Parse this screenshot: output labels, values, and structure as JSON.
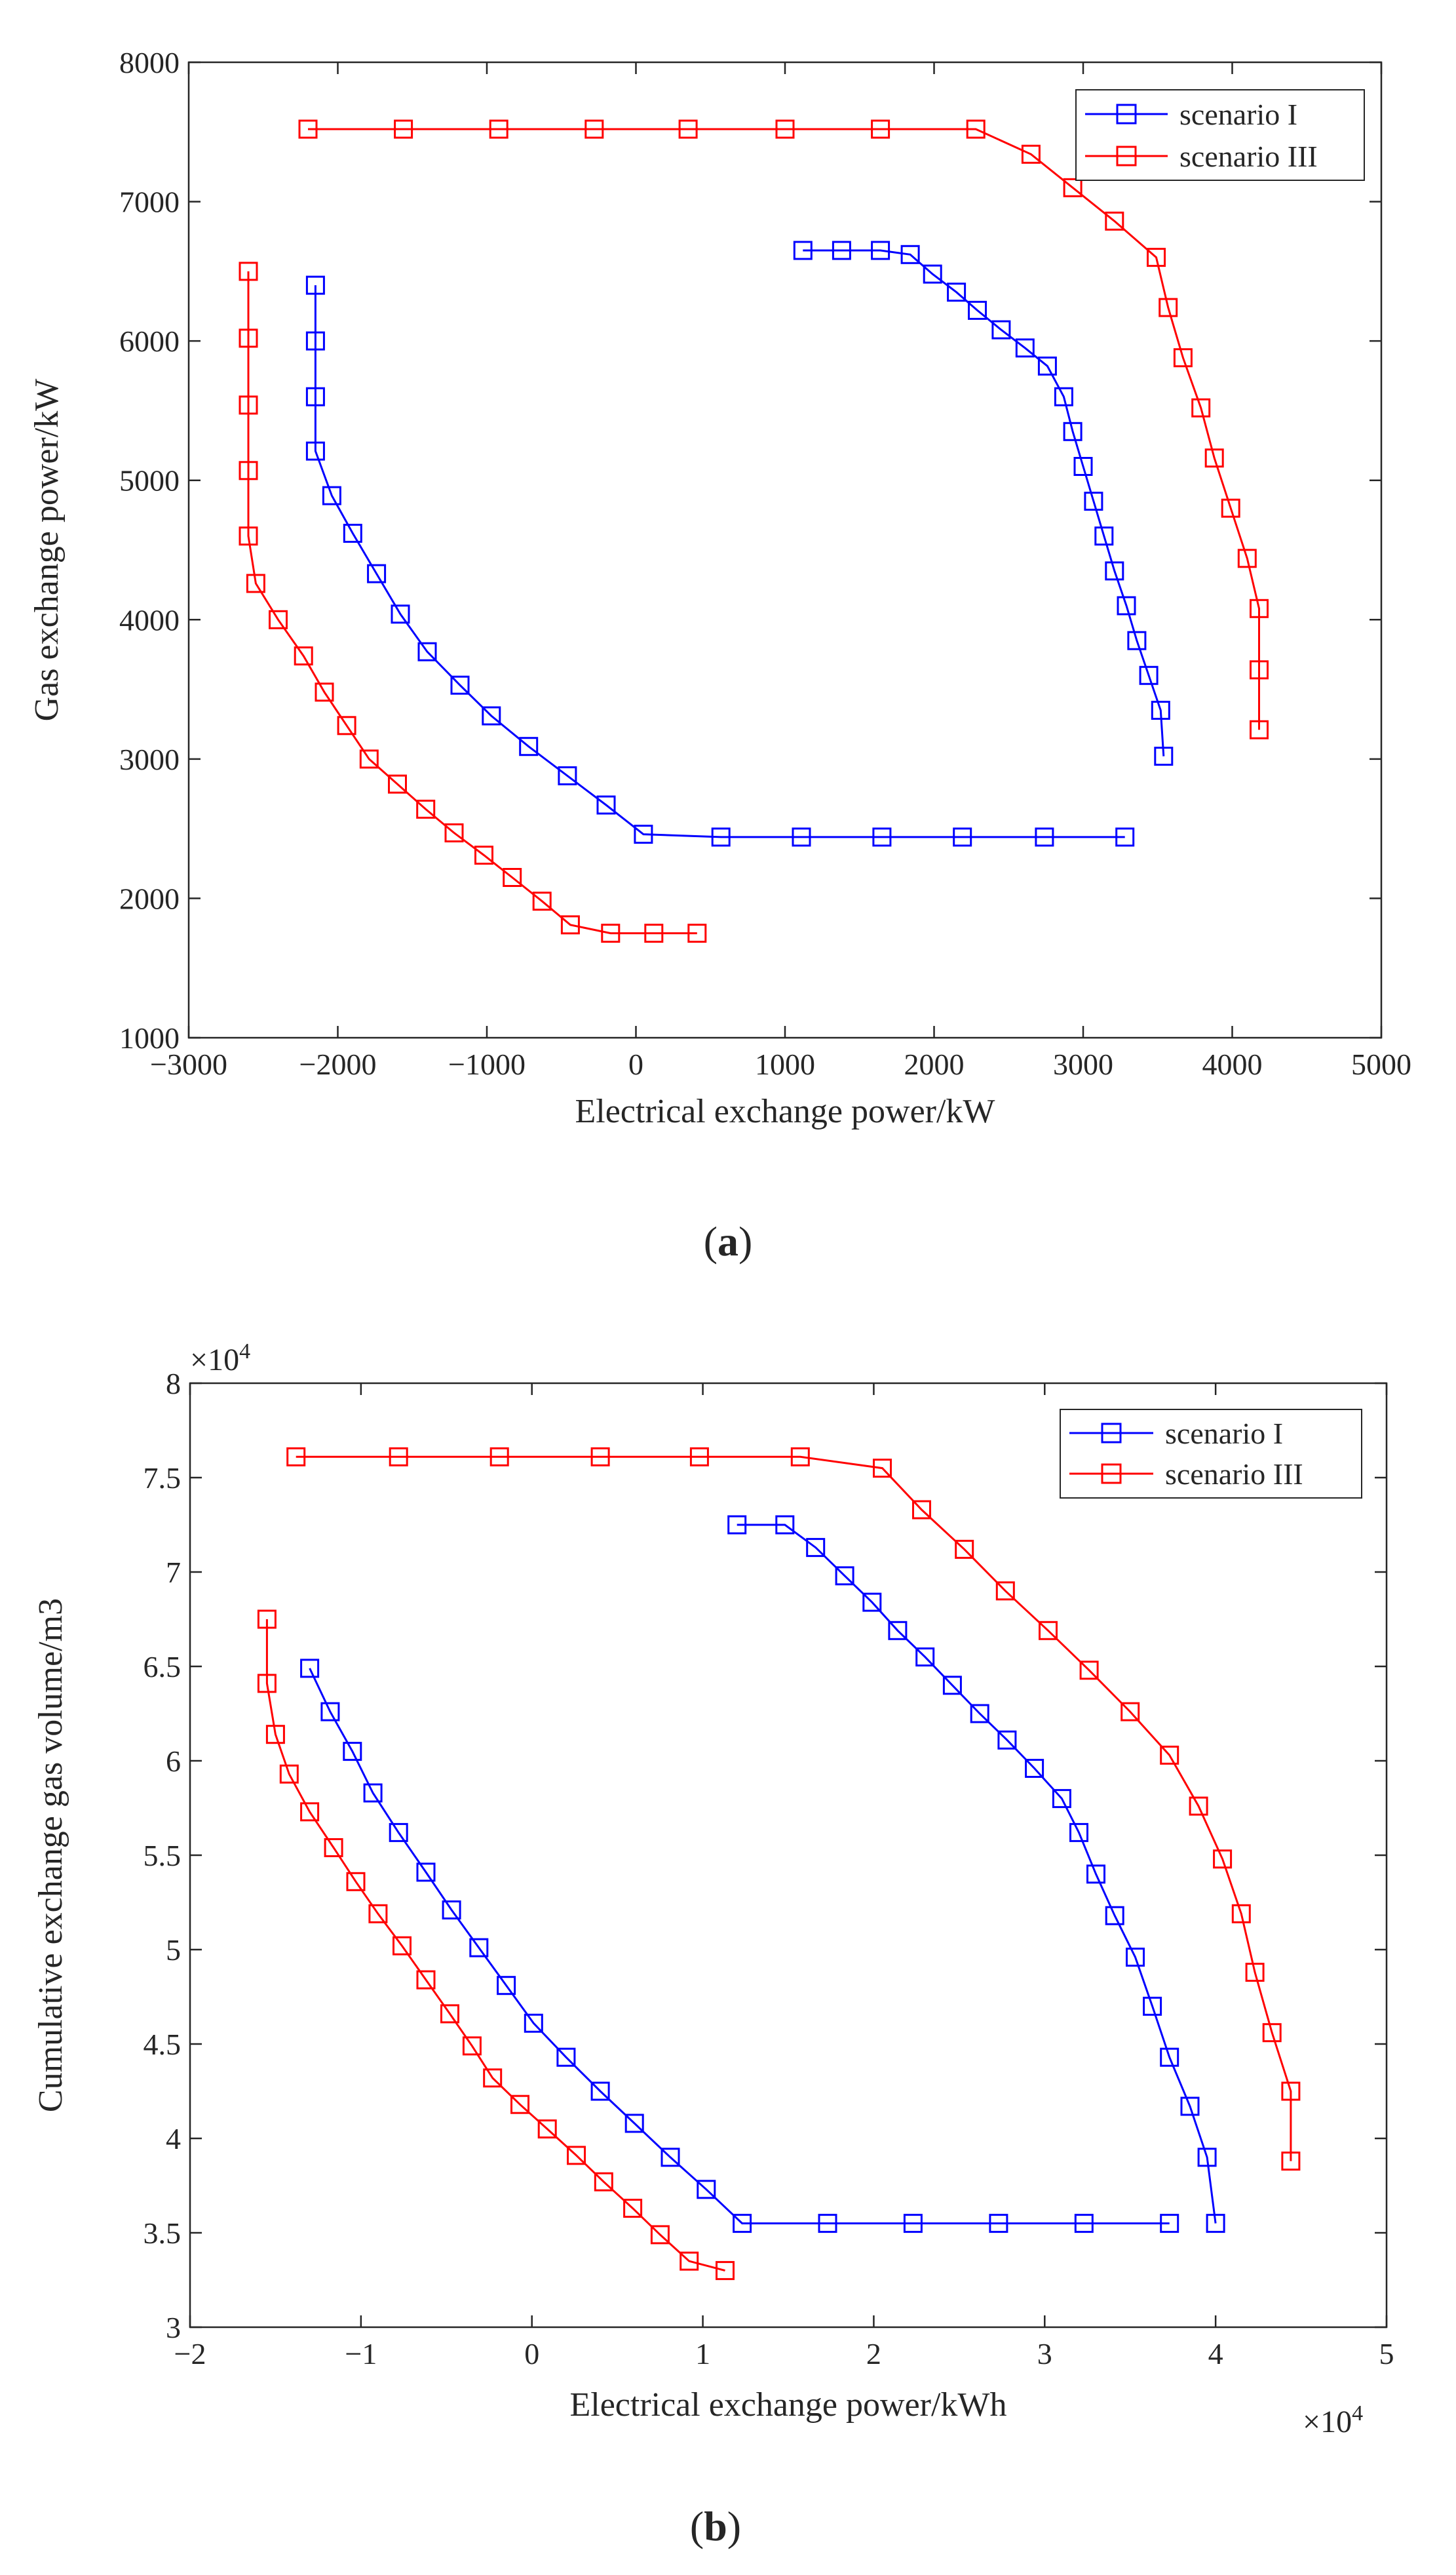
{
  "colors": {
    "series_1": "#0000ff",
    "series_2": "#ff0000",
    "axis": "#262626"
  },
  "panel_labels": {
    "a": {
      "open": "(",
      "letter": "a",
      "close": ")"
    },
    "b": {
      "open": "(",
      "letter": "b",
      "close": ")"
    }
  },
  "chart_data": [
    {
      "type": "line",
      "id": "a",
      "xlabel": "Electrical exchange power/kW",
      "ylabel": "Gas exchange power/kW",
      "xlim": [
        -3000,
        5000
      ],
      "ylim": [
        1000,
        8000
      ],
      "xticks": [
        -3000,
        -2000,
        -1000,
        0,
        1000,
        2000,
        3000,
        4000,
        5000
      ],
      "yticks": [
        1000,
        2000,
        3000,
        4000,
        5000,
        6000,
        7000,
        8000
      ],
      "xtick_labels": [
        "−3000",
        "−2000",
        "−1000",
        "0",
        "1000",
        "2000",
        "3000",
        "4000",
        "5000"
      ],
      "ytick_labels": [
        "1000",
        "2000",
        "3000",
        "4000",
        "5000",
        "6000",
        "7000",
        "8000"
      ],
      "x_multiplier": null,
      "y_multiplier": null,
      "grid": false,
      "legend_position": "top-right",
      "marker": "square",
      "series": [
        {
          "name": "scenario I",
          "color": "#0000ff",
          "points": [
            [
              -2150,
              6400
            ],
            [
              -2150,
              6000
            ],
            [
              -2150,
              5600
            ],
            [
              -2150,
              5210
            ],
            [
              -2040,
              4890
            ],
            [
              -1900,
              4620
            ],
            [
              -1740,
              4330
            ],
            [
              -1580,
              4040
            ],
            [
              -1400,
              3770
            ],
            [
              -1180,
              3530
            ],
            [
              -970,
              3310
            ],
            [
              -720,
              3090
            ],
            [
              -460,
              2880
            ],
            [
              -200,
              2670
            ],
            [
              50,
              2460
            ],
            [
              570,
              2440
            ],
            [
              1110,
              2440
            ],
            [
              1650,
              2440
            ],
            [
              2190,
              2440
            ],
            [
              2740,
              2440
            ],
            [
              3280,
              2440
            ],
            null,
            [
              1120,
              6650
            ],
            [
              1380,
              6650
            ],
            [
              1640,
              6650
            ],
            [
              1840,
              6620
            ],
            [
              1990,
              6480
            ],
            [
              2150,
              6350
            ],
            [
              2290,
              6220
            ],
            [
              2450,
              6080
            ],
            [
              2610,
              5950
            ],
            [
              2760,
              5820
            ],
            [
              2870,
              5600
            ],
            [
              2930,
              5350
            ],
            [
              3000,
              5100
            ],
            [
              3070,
              4850
            ],
            [
              3140,
              4600
            ],
            [
              3210,
              4350
            ],
            [
              3290,
              4100
            ],
            [
              3360,
              3850
            ],
            [
              3440,
              3600
            ],
            [
              3520,
              3350
            ],
            [
              3540,
              3020
            ]
          ]
        },
        {
          "name": "scenario III",
          "color": "#ff0000",
          "points": [
            [
              -2200,
              7520
            ],
            [
              -1560,
              7520
            ],
            [
              -920,
              7520
            ],
            [
              -280,
              7520
            ],
            [
              350,
              7520
            ],
            [
              1000,
              7520
            ],
            [
              1640,
              7520
            ],
            [
              2280,
              7520
            ],
            [
              2650,
              7340
            ],
            [
              2930,
              7100
            ],
            [
              3210,
              6860
            ],
            [
              3490,
              6600
            ],
            [
              3570,
              6240
            ],
            [
              3670,
              5880
            ],
            [
              3790,
              5520
            ],
            [
              3880,
              5160
            ],
            [
              3990,
              4800
            ],
            [
              4100,
              4440
            ],
            [
              4180,
              4080
            ],
            [
              4180,
              3640
            ],
            [
              4180,
              3210
            ],
            null,
            [
              -2600,
              6500
            ],
            [
              -2600,
              6020
            ],
            [
              -2600,
              5540
            ],
            [
              -2600,
              5070
            ],
            [
              -2600,
              4600
            ],
            [
              -2550,
              4260
            ],
            [
              -2400,
              4000
            ],
            [
              -2230,
              3740
            ],
            [
              -2090,
              3480
            ],
            [
              -1940,
              3240
            ],
            [
              -1790,
              3000
            ],
            [
              -1600,
              2820
            ],
            [
              -1410,
              2640
            ],
            [
              -1220,
              2470
            ],
            [
              -1020,
              2310
            ],
            [
              -830,
              2150
            ],
            [
              -630,
              1980
            ],
            [
              -440,
              1810
            ],
            [
              -170,
              1750
            ],
            [
              120,
              1750
            ],
            [
              410,
              1750
            ]
          ]
        }
      ]
    },
    {
      "type": "line",
      "id": "b",
      "xlabel": "Electrical exchange power/kWh",
      "ylabel": "Cumulative exchange gas volume/m3",
      "xlim": [
        -2,
        5
      ],
      "ylim": [
        3,
        8
      ],
      "xticks": [
        -2,
        -1,
        0,
        1,
        2,
        3,
        4,
        5
      ],
      "yticks": [
        3,
        3.5,
        4,
        4.5,
        5,
        5.5,
        6,
        6.5,
        7,
        7.5,
        8
      ],
      "xtick_labels": [
        "−2",
        "−1",
        "0",
        "1",
        "2",
        "3",
        "4",
        "5"
      ],
      "ytick_labels": [
        "3",
        "3.5",
        "4",
        "4.5",
        "5",
        "5.5",
        "6",
        "6.5",
        "7",
        "7.5",
        "8"
      ],
      "x_multiplier": {
        "base": "×10",
        "exp": "4"
      },
      "y_multiplier": {
        "base": "×10",
        "exp": "4"
      },
      "grid": false,
      "legend_position": "top-right",
      "marker": "square",
      "series": [
        {
          "name": "scenario I",
          "color": "#0000ff",
          "points": [
            [
              -1.3,
              6.49
            ],
            [
              -1.18,
              6.26
            ],
            [
              -1.05,
              6.05
            ],
            [
              -0.93,
              5.83
            ],
            [
              -0.78,
              5.62
            ],
            [
              -0.62,
              5.41
            ],
            [
              -0.47,
              5.21
            ],
            [
              -0.31,
              5.01
            ],
            [
              -0.15,
              4.81
            ],
            [
              0.01,
              4.61
            ],
            [
              0.2,
              4.43
            ],
            [
              0.4,
              4.25
            ],
            [
              0.6,
              4.08
            ],
            [
              0.81,
              3.9
            ],
            [
              1.02,
              3.73
            ],
            [
              1.23,
              3.55
            ],
            [
              1.73,
              3.55
            ],
            [
              2.23,
              3.55
            ],
            [
              2.73,
              3.55
            ],
            [
              3.23,
              3.55
            ],
            [
              3.73,
              3.55
            ],
            null,
            [
              1.2,
              7.25
            ],
            [
              1.48,
              7.25
            ],
            [
              1.66,
              7.13
            ],
            [
              1.83,
              6.98
            ],
            [
              1.99,
              6.84
            ],
            [
              2.14,
              6.69
            ],
            [
              2.3,
              6.55
            ],
            [
              2.46,
              6.4
            ],
            [
              2.62,
              6.25
            ],
            [
              2.78,
              6.11
            ],
            [
              2.94,
              5.96
            ],
            [
              3.1,
              5.8
            ],
            [
              3.2,
              5.62
            ],
            [
              3.3,
              5.4
            ],
            [
              3.41,
              5.18
            ],
            [
              3.53,
              4.96
            ],
            [
              3.63,
              4.7
            ],
            [
              3.73,
              4.43
            ],
            [
              3.85,
              4.17
            ],
            [
              3.95,
              3.9
            ],
            [
              4.0,
              3.55
            ]
          ]
        },
        {
          "name": "scenario III",
          "color": "#ff0000",
          "points": [
            [
              -1.38,
              7.61
            ],
            [
              -0.78,
              7.61
            ],
            [
              -0.19,
              7.61
            ],
            [
              0.4,
              7.61
            ],
            [
              0.98,
              7.61
            ],
            [
              1.57,
              7.61
            ],
            [
              2.05,
              7.55
            ],
            [
              2.28,
              7.33
            ],
            [
              2.53,
              7.12
            ],
            [
              2.77,
              6.9
            ],
            [
              3.02,
              6.69
            ],
            [
              3.26,
              6.48
            ],
            [
              3.5,
              6.26
            ],
            [
              3.73,
              6.03
            ],
            [
              3.9,
              5.76
            ],
            [
              4.04,
              5.48
            ],
            [
              4.15,
              5.19
            ],
            [
              4.23,
              4.88
            ],
            [
              4.33,
              4.56
            ],
            [
              4.44,
              4.25
            ],
            [
              4.44,
              3.88
            ],
            null,
            [
              -1.55,
              6.75
            ],
            [
              -1.55,
              6.41
            ],
            [
              -1.5,
              6.14
            ],
            [
              -1.42,
              5.93
            ],
            [
              -1.3,
              5.73
            ],
            [
              -1.16,
              5.54
            ],
            [
              -1.03,
              5.36
            ],
            [
              -0.9,
              5.19
            ],
            [
              -0.76,
              5.02
            ],
            [
              -0.62,
              4.84
            ],
            [
              -0.48,
              4.66
            ],
            [
              -0.35,
              4.49
            ],
            [
              -0.23,
              4.32
            ],
            [
              -0.07,
              4.18
            ],
            [
              0.09,
              4.05
            ],
            [
              0.26,
              3.91
            ],
            [
              0.42,
              3.77
            ],
            [
              0.59,
              3.63
            ],
            [
              0.75,
              3.49
            ],
            [
              0.92,
              3.35
            ],
            [
              1.13,
              3.3
            ]
          ]
        }
      ]
    }
  ]
}
